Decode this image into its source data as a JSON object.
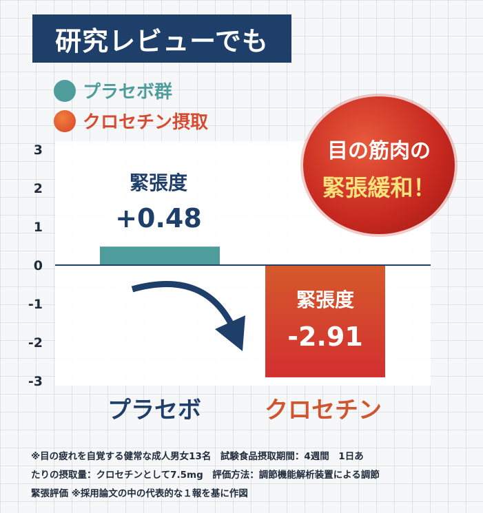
{
  "header": {
    "title": "研究レビューでも"
  },
  "legend": [
    {
      "label": "プラセボ群",
      "color": "#4e9c9c"
    },
    {
      "label": "クロセチン摂取",
      "color": "#e06436"
    }
  ],
  "badge": {
    "line1": "目の筋肉の",
    "line2": "緊張緩和！"
  },
  "colors": {
    "placebo": "#4e9c9c",
    "crocetin": "#d84a2f",
    "navy": "#1f3f6b",
    "category_crocetin_text": "#d0552f"
  },
  "chart_data": {
    "type": "bar",
    "categories": [
      "プラセボ",
      "クロセチン"
    ],
    "values": [
      0.48,
      -2.91
    ],
    "ylim": [
      -3,
      3
    ],
    "yticks": [
      3,
      2,
      1,
      0,
      -1,
      -2,
      -3
    ],
    "ytick_labels": [
      "3",
      "2",
      "1",
      "0",
      "-1",
      "-2",
      "-3"
    ],
    "data_labels": [
      {
        "title": "緊張度",
        "value": "+0.48"
      },
      {
        "title": "緊張度",
        "value": "-2.91"
      }
    ]
  },
  "footnote": {
    "line1": "※目の疲れを自覚する健常な成人男女13名　試験食品摂取期間：4週間　1日あ",
    "line2": "たりの摂取量：クロセチンとして7.5mg　評価方法：調節機能解析装置による調節",
    "line3": "緊張評価 ※採用論文の中の代表的な１報を基に作図"
  }
}
